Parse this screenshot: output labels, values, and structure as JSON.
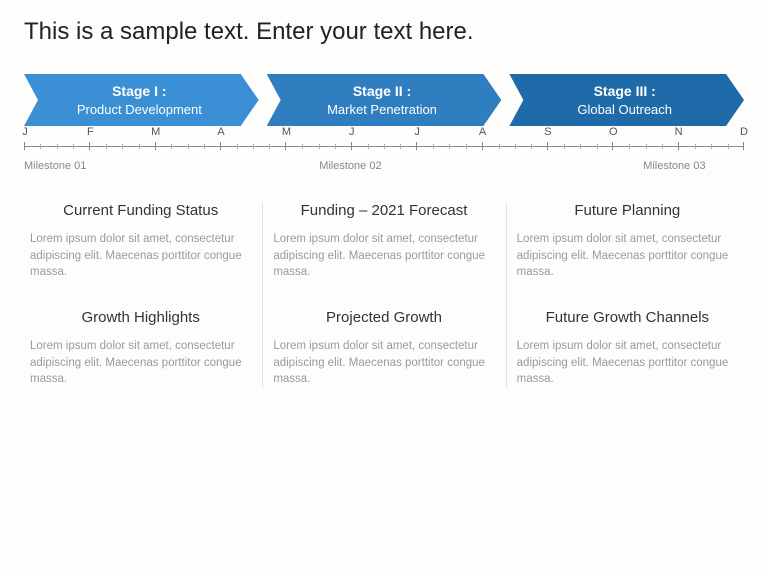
{
  "title": "This is a sample text. Enter your text here.",
  "stages": [
    {
      "name": "Stage I :",
      "sub": "Product Development",
      "color": "#3b8fd4"
    },
    {
      "name": "Stage II :",
      "sub": "Market Penetration",
      "color": "#2f7ec0"
    },
    {
      "name": "Stage III :",
      "sub": "Global Outreach",
      "color": "#1f6aa8"
    }
  ],
  "months": [
    "J",
    "F",
    "M",
    "A",
    "M",
    "J",
    "J",
    "A",
    "S",
    "O",
    "N",
    "D"
  ],
  "milestones": [
    {
      "label": "Milestone 01",
      "left_pct": 0
    },
    {
      "label": "Milestone 02",
      "left_pct": 41
    },
    {
      "label": "Milestone 03",
      "left_pct": 86
    }
  ],
  "lorem": "Lorem ipsum dolor sit amet, consectetur adipiscing elit. Maecenas porttitor congue massa.",
  "cells": [
    {
      "title": "Current Funding Status"
    },
    {
      "title": "Funding – 2021 Forecast"
    },
    {
      "title": "Future Planning"
    },
    {
      "title": "Growth Highlights"
    },
    {
      "title": "Projected Growth"
    },
    {
      "title": "Future Growth Channels"
    }
  ],
  "divider_color": "#e4e4e4"
}
